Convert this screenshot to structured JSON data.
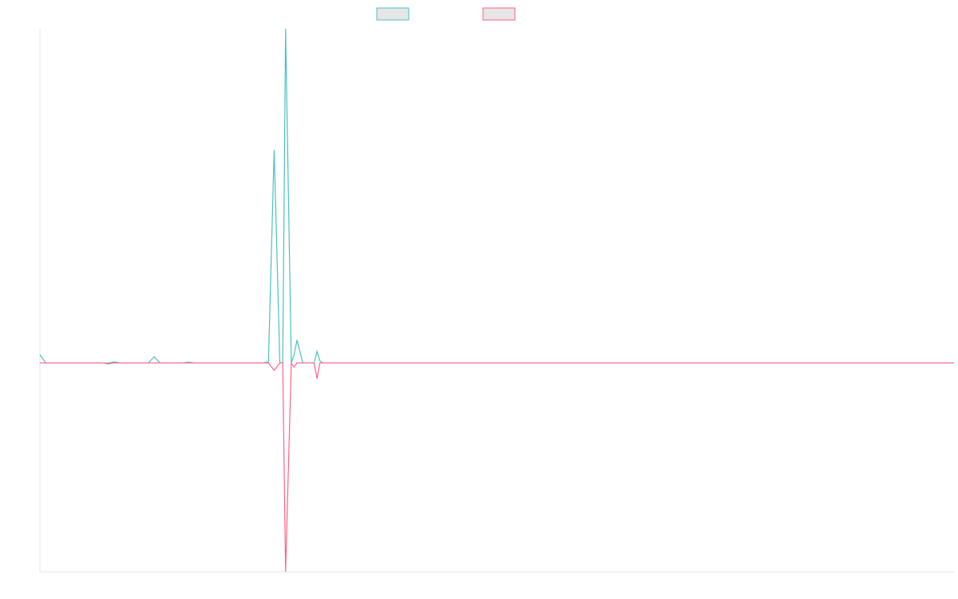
{
  "chart_data": {
    "type": "line",
    "title": "",
    "xlabel": "",
    "ylabel": "",
    "legend_position": "top-center",
    "grid": false,
    "xlim": [
      0,
      160
    ],
    "ylim": [
      -100,
      160
    ],
    "series": [
      {
        "name": "",
        "color": "#4bc0c0",
        "points": [
          [
            0,
            4
          ],
          [
            1,
            0
          ],
          [
            12,
            0
          ],
          [
            13,
            0.5
          ],
          [
            14,
            0
          ],
          [
            19,
            0
          ],
          [
            20,
            3
          ],
          [
            21,
            0
          ],
          [
            25,
            0
          ],
          [
            26,
            0.4
          ],
          [
            27,
            0
          ],
          [
            39,
            0
          ],
          [
            40,
            0.5
          ],
          [
            41,
            102
          ],
          [
            42,
            0
          ],
          [
            42.5,
            0
          ],
          [
            43,
            160
          ],
          [
            44,
            0
          ],
          [
            44.5,
            4
          ],
          [
            45,
            11
          ],
          [
            46,
            0
          ],
          [
            48,
            0
          ],
          [
            48.5,
            5.5
          ],
          [
            49,
            1
          ],
          [
            49.5,
            0
          ],
          [
            160,
            0
          ]
        ]
      },
      {
        "name": "",
        "color": "#ff6384",
        "points": [
          [
            0,
            0
          ],
          [
            11,
            0
          ],
          [
            12,
            -0.4
          ],
          [
            13,
            0
          ],
          [
            40,
            0
          ],
          [
            41,
            -3.5
          ],
          [
            42,
            0
          ],
          [
            42.5,
            0
          ],
          [
            43,
            -100
          ],
          [
            44,
            0
          ],
          [
            44.5,
            -2
          ],
          [
            45,
            0
          ],
          [
            48,
            0
          ],
          [
            48.5,
            -7.5
          ],
          [
            49,
            0
          ],
          [
            160,
            0
          ]
        ]
      }
    ]
  }
}
